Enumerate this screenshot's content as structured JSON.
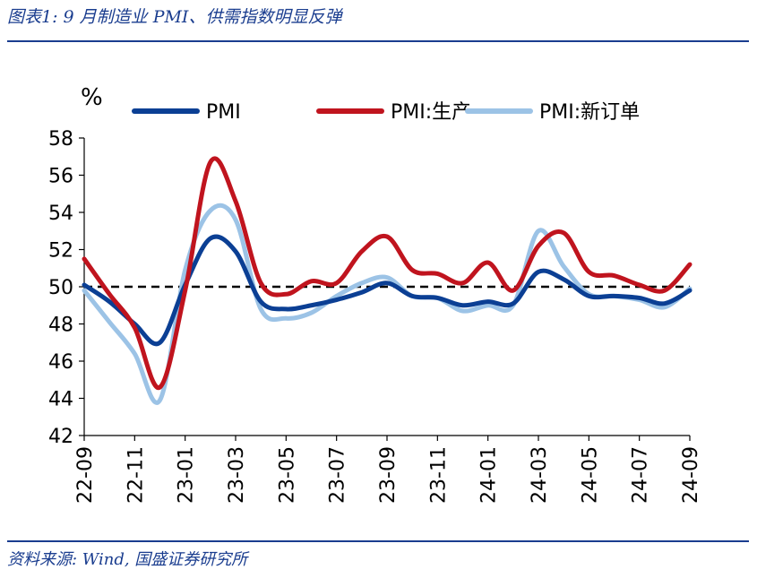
{
  "caption": "图表1: 9 月制造业 PMI、供需指数明显反弹",
  "source": "资料来源: Wind, 国盛证券研究所",
  "chart_data": {
    "type": "line",
    "ylabel": "%",
    "ylim": [
      42,
      58
    ],
    "yticks": [
      42,
      44,
      46,
      48,
      50,
      52,
      54,
      56,
      58
    ],
    "x": [
      "22-09",
      "22-10",
      "22-11",
      "22-12",
      "23-01",
      "23-02",
      "23-03",
      "23-04",
      "23-05",
      "23-06",
      "23-07",
      "23-08",
      "23-09",
      "23-10",
      "23-11",
      "23-12",
      "24-01",
      "24-02",
      "24-03",
      "24-04",
      "24-05",
      "24-06",
      "24-07",
      "24-08",
      "24-09"
    ],
    "xtick_labels": [
      "22-09",
      "22-11",
      "23-01",
      "23-03",
      "23-05",
      "23-07",
      "23-09",
      "23-11",
      "24-01",
      "24-03",
      "24-05",
      "24-07",
      "24-09"
    ],
    "reference_line": 50,
    "legend_position": "top",
    "series": [
      {
        "name": "PMI",
        "color": "#0b3f94",
        "values": [
          50.1,
          49.2,
          48.0,
          47.0,
          50.1,
          52.6,
          51.9,
          49.2,
          48.8,
          49.0,
          49.3,
          49.7,
          50.2,
          49.5,
          49.4,
          49.0,
          49.2,
          49.1,
          50.8,
          50.4,
          49.5,
          49.5,
          49.4,
          49.1,
          49.8
        ]
      },
      {
        "name": "PMI:生产",
        "color": "#c0141e",
        "values": [
          51.5,
          49.6,
          47.8,
          44.6,
          49.8,
          56.7,
          54.6,
          50.2,
          49.6,
          50.3,
          50.2,
          51.9,
          52.7,
          50.9,
          50.7,
          50.2,
          51.3,
          49.8,
          52.2,
          52.9,
          50.8,
          50.6,
          50.1,
          49.8,
          51.2
        ]
      },
      {
        "name": "PMI:新订单",
        "color": "#9cc3e6",
        "values": [
          49.8,
          48.1,
          46.4,
          43.9,
          50.9,
          54.1,
          53.6,
          48.8,
          48.3,
          48.6,
          49.5,
          50.2,
          50.5,
          49.5,
          49.4,
          48.7,
          49.0,
          49.0,
          53.0,
          51.1,
          49.6,
          49.5,
          49.3,
          48.9,
          49.9
        ]
      }
    ]
  }
}
